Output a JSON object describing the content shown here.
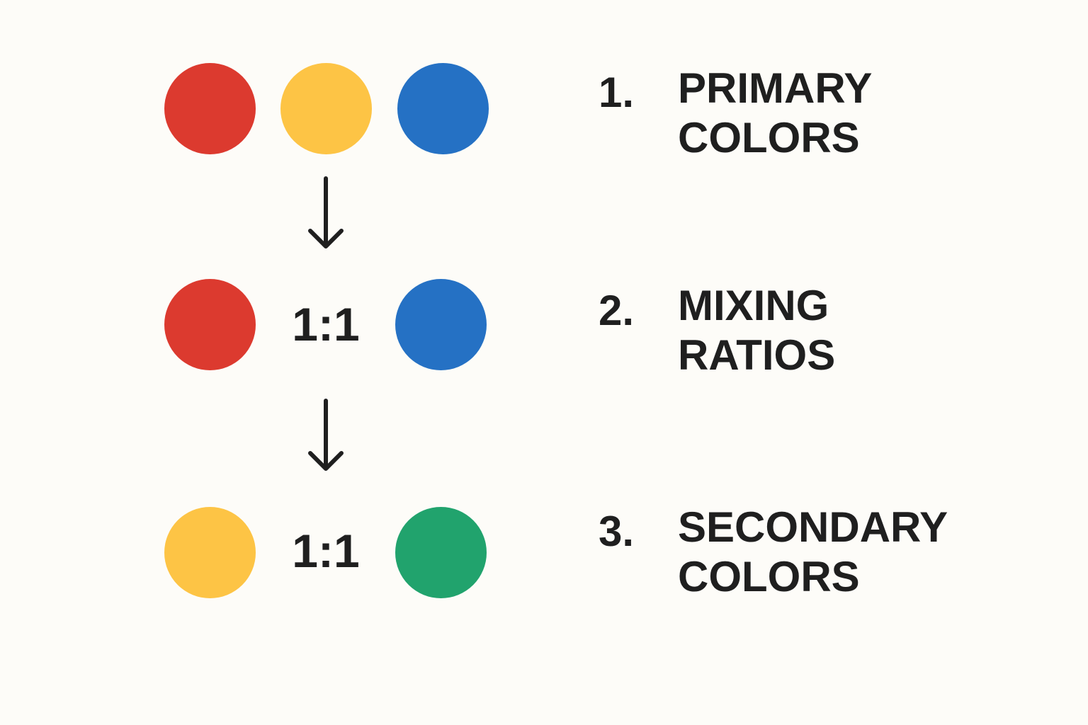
{
  "colors": {
    "red": "#dc3a2f",
    "yellow": "#fdc445",
    "blue": "#2571c4",
    "green": "#21a36d"
  },
  "rows": [
    {
      "circles": [
        "red",
        "yellow",
        "blue"
      ],
      "number": "1.",
      "label_line1": "PRIMARY",
      "label_line2": "COLORS"
    },
    {
      "circles": [
        "red",
        "blue"
      ],
      "ratio": "1:1",
      "number": "2.",
      "label_line1": "MIXING",
      "label_line2": "RATIOS"
    },
    {
      "circles": [
        "yellow",
        "green"
      ],
      "ratio": "1:1",
      "number": "3.",
      "label_line1": "SECONDARY",
      "label_line2": "COLORS"
    }
  ],
  "icons": [
    "arrow-down-icon",
    "arrow-down-icon"
  ]
}
